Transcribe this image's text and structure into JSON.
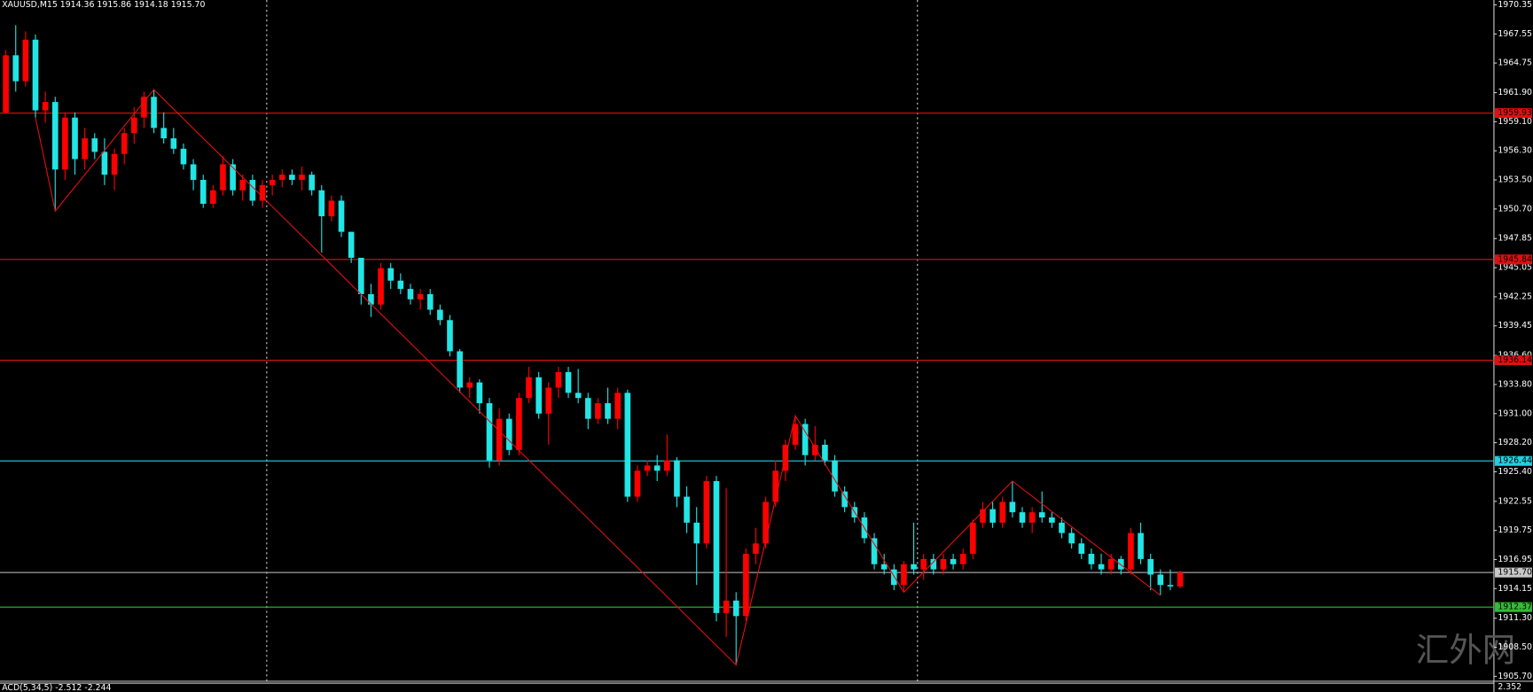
{
  "chart_data": {
    "type": "candlestick",
    "title": "XAUUSD,M15  1914.36 1915.86 1914.18 1915.70",
    "open": [
      1960,
      1965.5,
      1963,
      1967,
      1960.2,
      1961,
      1954.5,
      1959.5,
      1955.5,
      1957.5,
      1956.2,
      1954,
      1956,
      1958,
      1959.5,
      1961.5,
      1958.5,
      1957.5,
      1956.5,
      1955,
      1953.5,
      1951.2,
      1952.5,
      1955,
      1952.5,
      1953.5,
      1951.5,
      1953,
      1953.5,
      1954,
      1953.5,
      1954,
      1952.5,
      1950,
      1951.5,
      1948.5,
      1946,
      1942.5,
      1941.5,
      1945,
      1943.8,
      1943,
      1942,
      1942.5,
      1941,
      1940,
      1937,
      1933.5,
      1934,
      1932,
      1926.5,
      1930.5,
      1927.5,
      1932.5,
      1934.5,
      1931,
      1933.5,
      1935,
      1933,
      1932.5,
      1930.5,
      1932,
      1930.5,
      1933,
      1923,
      1925.5,
      1926,
      1925.5,
      1926.5,
      1923,
      1920.5,
      1918.5,
      1924.5,
      1911.8,
      1913,
      1911.5,
      1917.5,
      1918.5,
      1922.5,
      1925.5,
      1928,
      1930,
      1927,
      1928,
      1926.5,
      1923.5,
      1922,
      1921,
      1919,
      1916.5,
      1916,
      1914.5,
      1916.5,
      1916,
      1917,
      1916,
      1917,
      1916.5,
      1917.5,
      1920.5,
      1921.8,
      1920.5,
      1922.5,
      1921.5,
      1920.5,
      1921.5,
      1921,
      1920.5,
      1919.5,
      1918.5,
      1917.5,
      1916.5,
      1916,
      1917,
      1916,
      1919.5,
      1917,
      1915.5,
      1914.5,
      1914.36
    ],
    "high": [
      1966,
      1968.4,
      1967.8,
      1967.5,
      1962,
      1961.5,
      1960,
      1960,
      1958.5,
      1958,
      1957.5,
      1956.5,
      1958.5,
      1960.5,
      1962,
      1962.2,
      1960,
      1958.5,
      1957,
      1955.5,
      1954,
      1953,
      1955.8,
      1955.5,
      1954,
      1954,
      1953.5,
      1954,
      1954.5,
      1954.5,
      1954.8,
      1954.3,
      1953,
      1952,
      1952,
      1948.5,
      1946,
      1943.5,
      1945.5,
      1945.5,
      1944.5,
      1943.5,
      1943,
      1943,
      1941.5,
      1940.5,
      1937.2,
      1934.5,
      1934.3,
      1932.5,
      1931.5,
      1931,
      1933,
      1935.5,
      1935,
      1934,
      1935.5,
      1935.5,
      1935.3,
      1933,
      1932.5,
      1933.5,
      1933.5,
      1933.3,
      1926,
      1926.5,
      1927,
      1929,
      1926.8,
      1924,
      1922,
      1925,
      1925,
      1923.8,
      1913.8,
      1918,
      1920,
      1923,
      1926.5,
      1928.5,
      1930.8,
      1930.5,
      1929.8,
      1928.5,
      1927,
      1924,
      1922.5,
      1921.5,
      1919.5,
      1917.5,
      1916.5,
      1916.8,
      1920.5,
      1917.5,
      1917.5,
      1917.5,
      1917.5,
      1918,
      1920.8,
      1922.5,
      1922.5,
      1923,
      1924.5,
      1922,
      1922,
      1923.5,
      1921.5,
      1921,
      1920,
      1919,
      1918,
      1917.5,
      1917.5,
      1917.3,
      1920,
      1920.5,
      1917.5,
      1916,
      1916,
      1915.86
    ],
    "low": [
      1959.9,
      1962,
      1962.5,
      1959.5,
      1959,
      1950.5,
      1953.5,
      1954,
      1954.5,
      1955.5,
      1953,
      1952.5,
      1955,
      1957,
      1958.5,
      1958,
      1957,
      1956,
      1954.5,
      1952.5,
      1950.8,
      1950.8,
      1952,
      1952,
      1951.5,
      1951,
      1950.8,
      1952,
      1952.8,
      1953,
      1952.5,
      1952,
      1946.5,
      1949.5,
      1948,
      1945.5,
      1941.5,
      1940.3,
      1941,
      1943,
      1942.5,
      1941.5,
      1941,
      1940.5,
      1939.5,
      1936.5,
      1933,
      1932.5,
      1931,
      1925.8,
      1926,
      1927,
      1927,
      1932,
      1930.5,
      1928,
      1932.5,
      1932.5,
      1932,
      1929.5,
      1930,
      1930,
      1929.5,
      1922.5,
      1922.5,
      1925,
      1924.5,
      1925,
      1922,
      1919.5,
      1914.5,
      1918,
      1911,
      1909.5,
      1906.8,
      1911,
      1916.5,
      1918,
      1922,
      1924.5,
      1927.5,
      1926,
      1926.5,
      1926,
      1923,
      1921.5,
      1920.5,
      1918.5,
      1916,
      1915.5,
      1914,
      1913.8,
      1915.5,
      1915,
      1915.5,
      1915.5,
      1916,
      1916,
      1917,
      1920,
      1920,
      1920,
      1921,
      1920,
      1919.5,
      1920.5,
      1920,
      1919,
      1918,
      1917,
      1916,
      1915.5,
      1915.5,
      1915.5,
      1915.5,
      1916.5,
      1914,
      1913.5,
      1914,
      1914.18
    ],
    "close": [
      1965.5,
      1963,
      1967,
      1960.2,
      1961,
      1954.5,
      1959.5,
      1955.5,
      1957.5,
      1956.2,
      1954,
      1956,
      1958,
      1959.5,
      1961.5,
      1958.5,
      1957.5,
      1956.5,
      1955,
      1953.5,
      1951.2,
      1952.5,
      1955,
      1952.5,
      1953.5,
      1951.5,
      1953,
      1953.5,
      1954,
      1953.5,
      1954,
      1952.5,
      1950,
      1951.5,
      1948.5,
      1946,
      1942.5,
      1941.5,
      1945,
      1943.8,
      1943,
      1942,
      1942.5,
      1941,
      1940,
      1937,
      1933.5,
      1934,
      1932,
      1926.5,
      1930.5,
      1927.5,
      1932.5,
      1934.5,
      1931,
      1933.5,
      1935,
      1933,
      1932.5,
      1930.5,
      1932,
      1930.5,
      1933,
      1923,
      1925.5,
      1926,
      1925.5,
      1926.5,
      1923,
      1920.5,
      1918.5,
      1924.5,
      1911.8,
      1913,
      1911.5,
      1917.5,
      1918.5,
      1922.5,
      1925.5,
      1928,
      1930,
      1927,
      1928,
      1926.5,
      1923.5,
      1922,
      1921,
      1919,
      1916.5,
      1916,
      1914.5,
      1916.5,
      1916,
      1917,
      1916,
      1917,
      1916.5,
      1917.5,
      1920.5,
      1921.8,
      1920.5,
      1922.5,
      1921.5,
      1920.5,
      1921.5,
      1921,
      1920.5,
      1919.5,
      1918.5,
      1917.5,
      1916.5,
      1916,
      1917,
      1916,
      1919.5,
      1917,
      1915.5,
      1914.5,
      1914.36,
      1915.7
    ],
    "up_color": "#ff0000",
    "down_color": "#22e5e5",
    "ylim": [
      1905.23,
      1970.82
    ],
    "yticks": [
      1970.35,
      1967.55,
      1964.75,
      {
        "value": 1961.9,
        "label": "1961.90"
      },
      {
        "value": 1959.1,
        "label": "1959.10"
      },
      {
        "value": 1956.3,
        "label": "1956.30"
      },
      {
        "value": 1953.5,
        "label": "1953.50"
      },
      {
        "value": 1950.7,
        "label": "1950.70"
      },
      1947.85,
      1945.05,
      1942.25,
      1939.45,
      {
        "value": 1936.6,
        "label": "1936.60"
      },
      {
        "value": 1933.8,
        "label": "1933.80"
      },
      {
        "value": 1931,
        "label": "1931.00"
      },
      {
        "value": 1928.2,
        "label": "1928.20"
      },
      {
        "value": 1925.4,
        "label": "1925.40"
      },
      1922.55,
      1919.75,
      1916.95,
      1914.15,
      {
        "value": 1911.3,
        "label": "1911.30"
      },
      {
        "value": 1908.5,
        "label": "1908.50"
      },
      {
        "value": 1905.7,
        "label": "1905.70"
      }
    ],
    "hlines": [
      {
        "value": 1959.93,
        "label": "1959.93",
        "color": "#e01010"
      },
      {
        "value": 1945.84,
        "label": "1945.84",
        "color": "#e01010"
      },
      {
        "value": 1936.14,
        "label": "1936.14",
        "color": "#e01010"
      },
      {
        "value": 1926.44,
        "label": "1926.44",
        "color": "#22d0e0"
      },
      {
        "value": 1915.7,
        "label": "1915.70",
        "color": "#c8c8c8"
      },
      {
        "value": 1912.37,
        "label": "1912.37",
        "color": "#33bb33"
      }
    ],
    "zigzag": {
      "x": [
        3,
        5,
        15,
        74,
        80,
        91,
        102,
        117
      ],
      "values": [
        1959.5,
        1950.5,
        1962.2,
        1906.8,
        1930.8,
        1913.8,
        1924.5,
        1913.5
      ],
      "color": "#e01010"
    },
    "indicator": {
      "label": "ACD(5,34,5) -2.512 -2.244",
      "axis_label": "2.352"
    },
    "watermark": "汇外网"
  }
}
